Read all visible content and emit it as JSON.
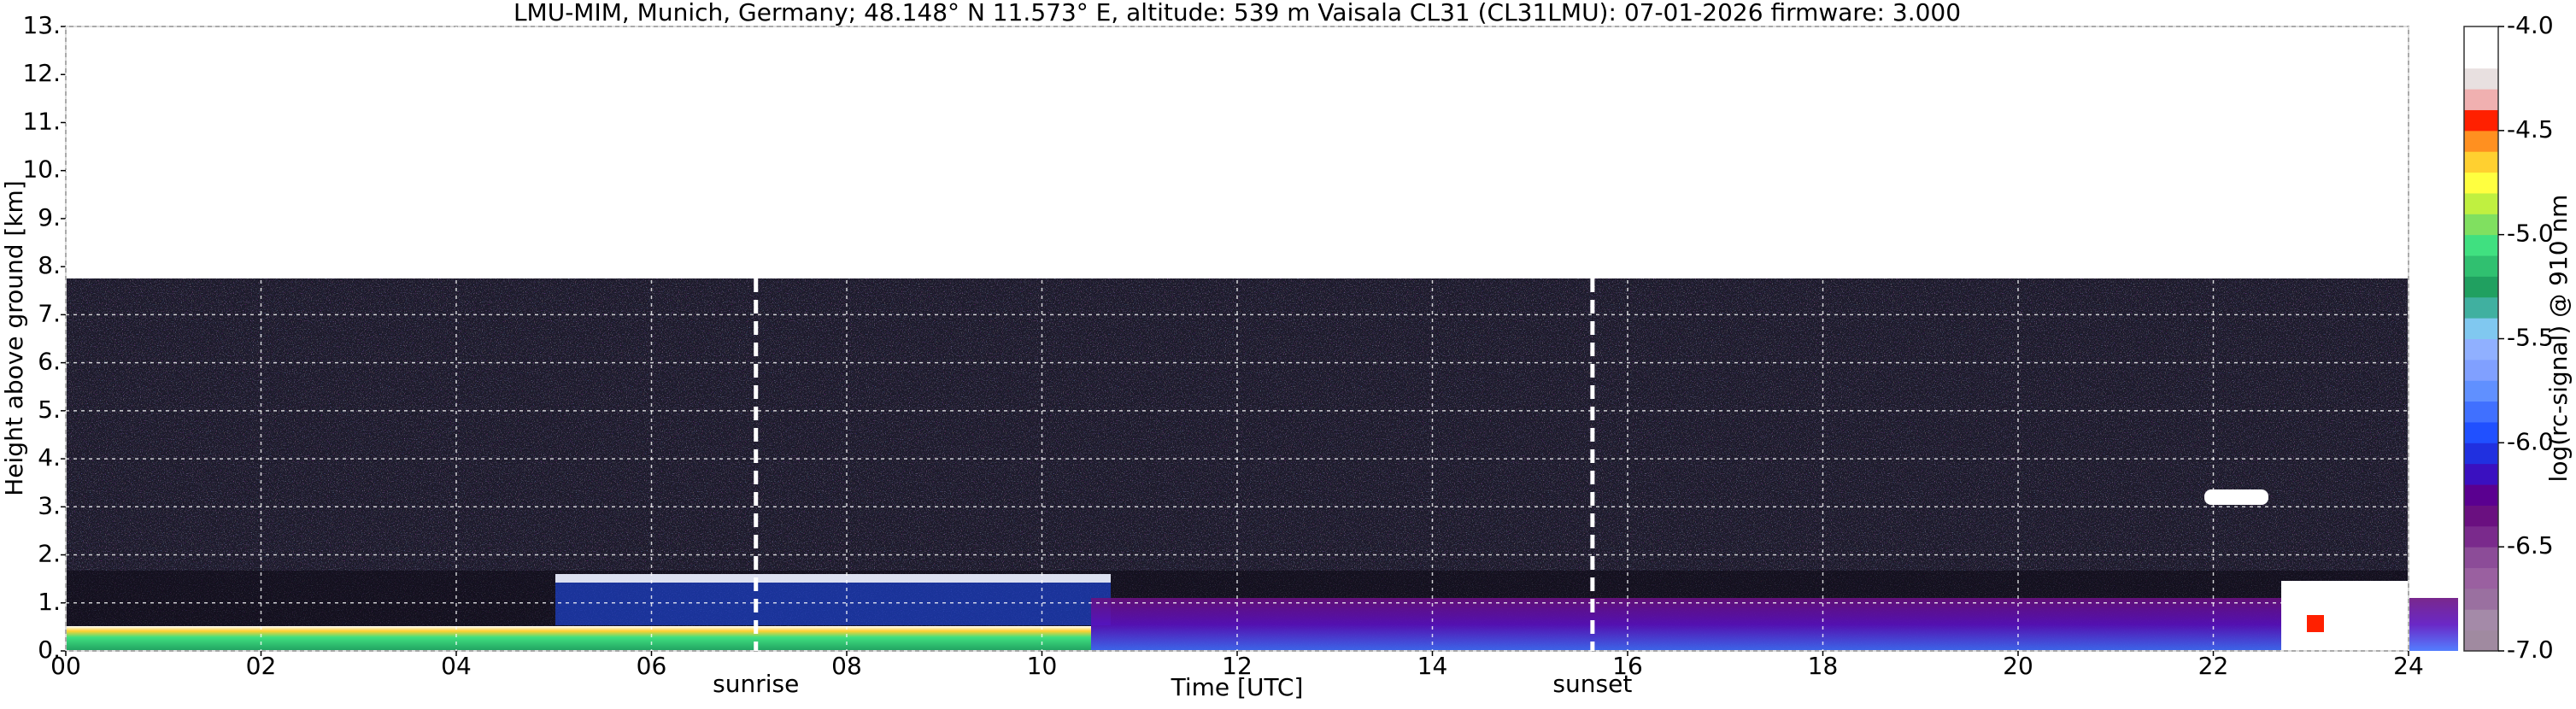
{
  "chart_data": {
    "type": "heatmap",
    "title": "LMU-MIM, Munich, Germany; 48.148° N 11.573° E, altitude: 539 m    Vaisala CL31 (CL31LMU): 07-01-2026    firmware: 3.000",
    "x_label": "Time [UTC]",
    "y_label": "Height above ground [km]",
    "xlim": [
      0,
      24
    ],
    "xticks": [
      {
        "value": 0,
        "label": "00"
      },
      {
        "value": 2,
        "label": "02"
      },
      {
        "value": 4,
        "label": "04"
      },
      {
        "value": 6,
        "label": "06"
      },
      {
        "value": 8,
        "label": "08"
      },
      10,
      12,
      14,
      16,
      18,
      20,
      22,
      24
    ],
    "ylim": [
      0,
      13
    ],
    "yticks": [
      {
        "value": 0,
        "label": "0."
      },
      {
        "value": 1,
        "label": "1."
      },
      {
        "value": 2,
        "label": "2."
      },
      {
        "value": 3,
        "label": "3."
      },
      {
        "value": 4,
        "label": "4."
      },
      {
        "value": 5,
        "label": "5."
      },
      {
        "value": 6,
        "label": "6."
      },
      {
        "value": 7,
        "label": "7."
      },
      {
        "value": 8,
        "label": "8."
      },
      {
        "value": 9,
        "label": "9."
      },
      {
        "value": 10,
        "label": "10."
      },
      {
        "value": 11,
        "label": "11."
      },
      {
        "value": 12,
        "label": "12."
      },
      {
        "value": 13,
        "label": "13."
      }
    ],
    "grid": true,
    "annotations": [
      {
        "text": "sunrise",
        "x": 7.07
      },
      {
        "text": "sunset",
        "x": 15.64
      }
    ],
    "colorbar": {
      "label": "log(rc-signal) @ 910 nm",
      "lim": [
        -7.0,
        -4.0
      ],
      "ticks": [
        {
          "value": -7.0,
          "label": "-7.0"
        },
        -6.5,
        {
          "value": -6.0,
          "label": "-6.0"
        },
        -5.5,
        {
          "value": -5.0,
          "label": "-5.0"
        },
        -4.5,
        {
          "value": -4.0,
          "label": "-4.0"
        }
      ],
      "colors": [
        "#a08aa0",
        "#a48aa8",
        "#9a70a0",
        "#9a60a0",
        "#8c4c98",
        "#7a2a8c",
        "#6a1080",
        "#5a0090",
        "#3a10c0",
        "#2030e0",
        "#2050ff",
        "#4070ff",
        "#6090ff",
        "#80a0ff",
        "#90b0ff",
        "#80c8f0",
        "#40b0a0",
        "#20a060",
        "#30c070",
        "#40e080",
        "#80e060",
        "#c0f040",
        "#ffff40",
        "#ffd030",
        "#ff9020",
        "#ff2000",
        "#f0b0b0",
        "#e8e0e0",
        "#ffffff",
        "#ffffff"
      ]
    }
  }
}
